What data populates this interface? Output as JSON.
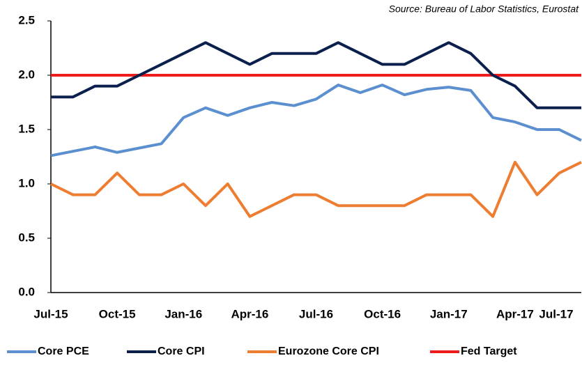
{
  "chart_data": {
    "type": "line",
    "annotation": "Source: Bureau of Labor Statistics, Eurostat",
    "categories": [
      "Jul-15",
      null,
      null,
      "Oct-15",
      null,
      null,
      "Jan-16",
      null,
      null,
      "Apr-16",
      null,
      null,
      "Jul-16",
      null,
      null,
      "Oct-16",
      null,
      null,
      "Jan-17",
      null,
      null,
      "Apr-17",
      null,
      null,
      "Jul-17"
    ],
    "series": [
      {
        "name": "Core PCE",
        "color": "#5b8fd0",
        "values": [
          1.26,
          1.3,
          1.34,
          1.29,
          1.33,
          1.37,
          1.61,
          1.7,
          1.63,
          1.7,
          1.75,
          1.72,
          1.78,
          1.91,
          1.84,
          1.91,
          1.82,
          1.87,
          1.89,
          1.86,
          1.61,
          1.57,
          1.5,
          1.5,
          1.4
        ]
      },
      {
        "name": "Core CPI",
        "color": "#0b1f4d",
        "values": [
          1.8,
          1.8,
          1.9,
          1.9,
          2.0,
          2.1,
          2.2,
          2.3,
          2.2,
          2.1,
          2.2,
          2.2,
          2.2,
          2.3,
          2.2,
          2.1,
          2.1,
          2.2,
          2.3,
          2.2,
          2.0,
          1.9,
          1.7,
          1.7,
          1.7
        ]
      },
      {
        "name": "Eurozone Core CPI",
        "color": "#ed7d31",
        "values": [
          1.0,
          0.9,
          0.9,
          1.1,
          0.9,
          0.9,
          1.0,
          0.8,
          1.0,
          0.7,
          0.8,
          0.9,
          0.9,
          0.8,
          0.8,
          0.8,
          0.8,
          0.9,
          0.9,
          0.9,
          0.7,
          1.2,
          0.9,
          1.1,
          1.2
        ]
      },
      {
        "name": "Fed Target",
        "color": "#ee1c1c",
        "values": [
          2.0,
          2.0,
          2.0,
          2.0,
          2.0,
          2.0,
          2.0,
          2.0,
          2.0,
          2.0,
          2.0,
          2.0,
          2.0,
          2.0,
          2.0,
          2.0,
          2.0,
          2.0,
          2.0,
          2.0,
          2.0,
          2.0,
          2.0,
          2.0,
          2.0
        ]
      }
    ],
    "ylim": [
      0,
      2.5
    ],
    "yticks": [
      {
        "value": 0,
        "label": "0.0"
      },
      {
        "value": 0.5,
        "label": "0.5"
      },
      {
        "value": 1,
        "label": "1.0"
      },
      {
        "value": 1.5,
        "label": "1.5"
      },
      {
        "value": 2,
        "label": "2.0"
      },
      {
        "value": 2.5,
        "label": "2.5"
      }
    ],
    "grid": false
  }
}
